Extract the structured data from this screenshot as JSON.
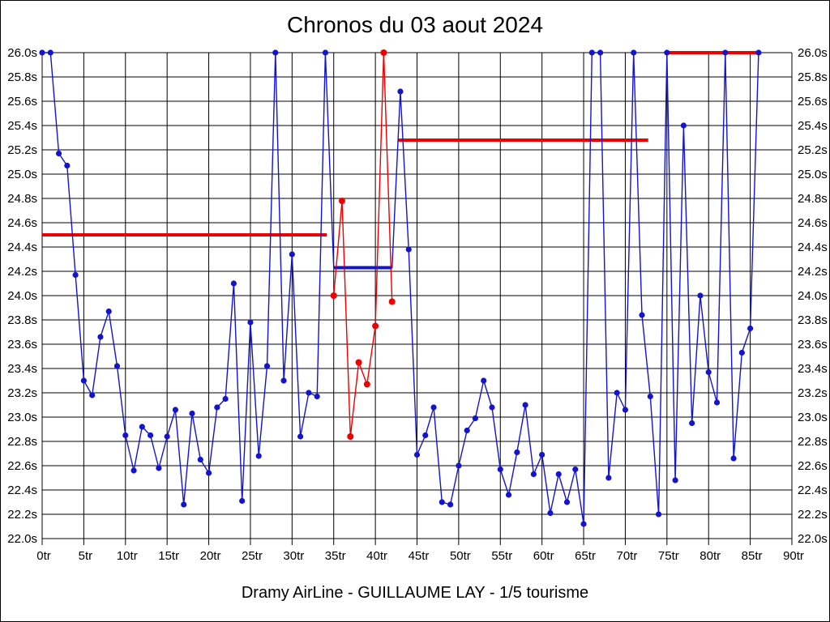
{
  "title": "Chronos du 03 aout 2024",
  "footer": "Dramy AirLine - GUILLAUME LAY - 1/5 tourisme",
  "chart_data": {
    "type": "line",
    "title": "Chronos du 03 aout 2024",
    "footer_caption": "Dramy AirLine - GUILLAUME LAY - 1/5 tourisme",
    "grid": true,
    "x_axis": {
      "min": 0,
      "max": 90,
      "step": 5,
      "suffix": "tr"
    },
    "y_axis": {
      "min": 22.0,
      "max": 26.0,
      "step": 0.2,
      "suffix": "s"
    },
    "colors": {
      "blue_series": "#1414CC",
      "red_series": "#EE0000"
    },
    "series": [
      {
        "name": "blue-laps",
        "color": "#1414CC",
        "points": [
          [
            0,
            26.0
          ],
          [
            1,
            26.0
          ],
          [
            2,
            25.17
          ],
          [
            3,
            25.07
          ],
          [
            4,
            24.17
          ],
          [
            5,
            23.3
          ],
          [
            6,
            23.18
          ],
          [
            7,
            23.66
          ],
          [
            8,
            23.87
          ],
          [
            9,
            23.42
          ],
          [
            10,
            22.85
          ],
          [
            11,
            22.56
          ],
          [
            12,
            22.92
          ],
          [
            13,
            22.85
          ],
          [
            14,
            22.58
          ],
          [
            15,
            22.84
          ],
          [
            16,
            23.06
          ],
          [
            17,
            22.28
          ],
          [
            18,
            23.03
          ],
          [
            19,
            22.65
          ],
          [
            20,
            22.54
          ],
          [
            21,
            23.08
          ],
          [
            22,
            23.15
          ],
          [
            23,
            24.1
          ],
          [
            24,
            22.31
          ],
          [
            25,
            23.78
          ],
          [
            26,
            22.68
          ],
          [
            27,
            23.42
          ],
          [
            28,
            26.0
          ],
          [
            29,
            23.3
          ],
          [
            30,
            24.34
          ],
          [
            31,
            22.84
          ],
          [
            32,
            23.2
          ],
          [
            33,
            23.17
          ],
          [
            34,
            26.0
          ],
          [
            35,
            24.23
          ],
          [
            42,
            24.23
          ],
          [
            43,
            25.68
          ],
          [
            44,
            24.38
          ],
          [
            45,
            22.69
          ],
          [
            46,
            22.85
          ],
          [
            47,
            23.08
          ],
          [
            48,
            22.3
          ],
          [
            49,
            22.28
          ],
          [
            50,
            22.6
          ],
          [
            51,
            22.89
          ],
          [
            52,
            22.99
          ],
          [
            53,
            23.3
          ],
          [
            54,
            23.08
          ],
          [
            55,
            22.57
          ],
          [
            56,
            22.36
          ],
          [
            57,
            22.71
          ],
          [
            58,
            23.1
          ],
          [
            59,
            22.53
          ],
          [
            60,
            22.69
          ],
          [
            61,
            22.21
          ],
          [
            62,
            22.53
          ],
          [
            63,
            22.3
          ],
          [
            64,
            22.57
          ],
          [
            65,
            22.12
          ],
          [
            66,
            26.0
          ],
          [
            67,
            26.0
          ],
          [
            68,
            22.5
          ],
          [
            69,
            23.2
          ],
          [
            70,
            23.06
          ],
          [
            71,
            26.0
          ],
          [
            72,
            23.84
          ],
          [
            73,
            23.17
          ],
          [
            74,
            22.2
          ],
          [
            75,
            26.0
          ],
          [
            76,
            22.48
          ],
          [
            77,
            25.4
          ],
          [
            78,
            22.95
          ],
          [
            79,
            24.0
          ],
          [
            80,
            23.37
          ],
          [
            81,
            23.12
          ],
          [
            82,
            26.0
          ],
          [
            83,
            22.66
          ],
          [
            84,
            23.53
          ],
          [
            85,
            23.73
          ],
          [
            86,
            26.0
          ]
        ],
        "no_marker_trs": [
          35,
          42
        ]
      },
      {
        "name": "red-laps",
        "color": "#EE0000",
        "points": [
          [
            35,
            24.0
          ],
          [
            36,
            24.78
          ],
          [
            37,
            22.84
          ],
          [
            38,
            23.45
          ],
          [
            39,
            23.27
          ],
          [
            40,
            23.75
          ],
          [
            41,
            26.0
          ],
          [
            42,
            23.95
          ]
        ],
        "no_marker_trs": []
      }
    ],
    "reference_lines": [
      {
        "color": "#EE0000",
        "s": 24.5,
        "from_tr": 0.0,
        "to_tr": 34.15
      },
      {
        "color": "#EE0000",
        "s": 25.28,
        "from_tr": 42.7,
        "to_tr": 72.75
      },
      {
        "color": "#EE0000",
        "s": 26.0,
        "from_tr": 75.0,
        "to_tr": 86.0
      },
      {
        "color": "#1414CC",
        "s": 24.23,
        "from_tr": 35.0,
        "to_tr": 42.0
      }
    ]
  }
}
